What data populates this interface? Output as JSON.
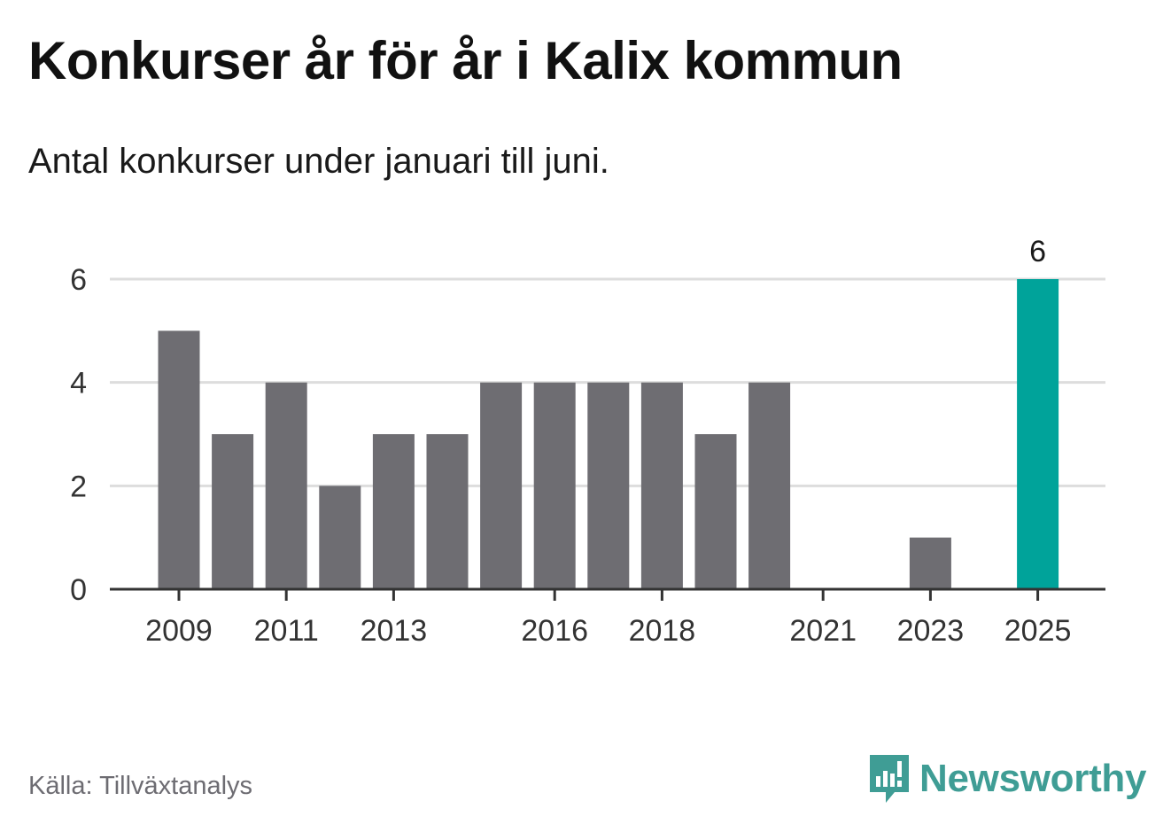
{
  "title": "Konkurser år för år i Kalix kommun",
  "subtitle": "Antal konkurser under januari till juni.",
  "source": "Källa: Tillväxtanalys",
  "brand": "Newsworthy",
  "icons": {
    "brand": "newsworthy-logo-icon"
  },
  "colors": {
    "bar": "#6e6d72",
    "highlight": "#00a39a",
    "grid": "#dddddd",
    "axis": "#333333",
    "brand": "#3f9d95"
  },
  "chart_data": {
    "type": "bar",
    "title": "Konkurser år för år i Kalix kommun",
    "subtitle": "Antal konkurser under januari till juni.",
    "xlabel": "",
    "ylabel": "",
    "categories": [
      "2009",
      "2010",
      "2011",
      "2012",
      "2013",
      "2014",
      "2015",
      "2016",
      "2017",
      "2018",
      "2019",
      "2020",
      "2021",
      "2022",
      "2023",
      "2024",
      "2025"
    ],
    "values": [
      5,
      3,
      4,
      2,
      3,
      3,
      4,
      4,
      4,
      4,
      3,
      4,
      0,
      0,
      1,
      0,
      6
    ],
    "x_tick_labels": [
      "2009",
      "2011",
      "2013",
      "2016",
      "2018",
      "2021",
      "2023",
      "2025"
    ],
    "y_ticks": [
      0,
      2,
      4,
      6
    ],
    "ylim": [
      0,
      6
    ],
    "highlight": "2025",
    "data_labels": [
      {
        "category": "2025",
        "label": "6"
      }
    ],
    "grid": true,
    "legend": "none"
  }
}
